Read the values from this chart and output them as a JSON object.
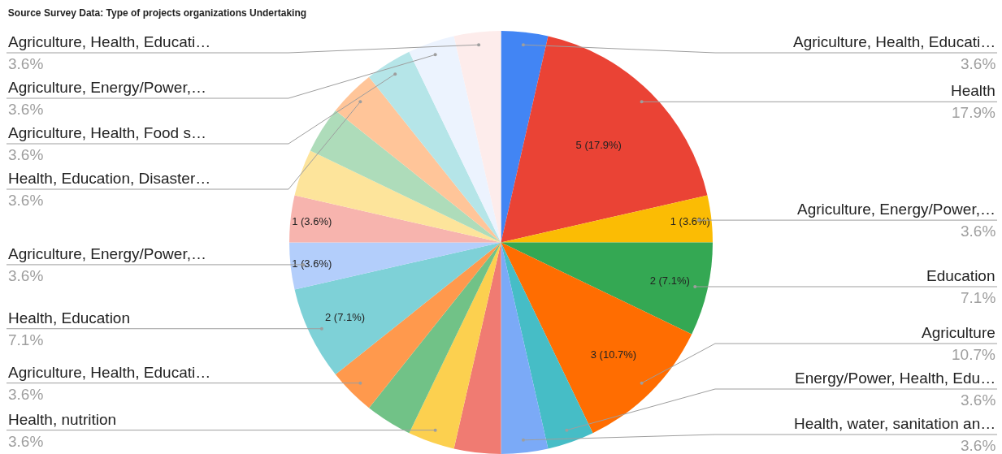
{
  "chart_data": {
    "type": "pie",
    "title": "Source Survey Data: Type of projects organizations Undertaking",
    "categories": [
      "Agriculture, Health, Educati…\n3.6%",
      "Health\n17.9%",
      "Agriculture, Energy/Power,…\n3.6%",
      "Education\n7.1%",
      "Agriculture\n10.7%",
      "Energy/Power, Health, Edu…\n3.6%",
      "Health, water, sanitation an…\n3.6%",
      null,
      "Health, nutrition\n3.6%",
      null,
      "Agriculture, Health, Educati…\n3.6%",
      "Health, Education\n7.1%",
      "Agriculture, Energy/Power,…\n3.6%",
      null,
      null,
      null,
      "Health, Education, Disaster…\n3.6%",
      "Agriculture, Health, Food s…\n3.6%",
      "Agriculture, Energy/Power,…\n3.6%",
      "Agriculture, Health, Educati…\n3.6%"
    ],
    "values": [
      1,
      5,
      1,
      2,
      3,
      1,
      1,
      1,
      1,
      1,
      1,
      2,
      1,
      1,
      1,
      1,
      1,
      1,
      1,
      1
    ],
    "colors": [
      "#4285f4",
      "#ea4335",
      "#fbbc04",
      "#34a853",
      "#ff6d01",
      "#46bdc6",
      "#7baaf7",
      "#f07b72",
      "#fcd04f",
      "#71c287",
      "#ff994d",
      "#7ed1d7",
      "#b3cefb",
      "#f7b4ae",
      "#fde49b",
      "#aedcba",
      "#ffc599",
      "#b5e5e8",
      "#ecf3fe",
      "#fdeceb"
    ],
    "value_labels": [
      null,
      "5 (17.9%)",
      "1 (3.6%)",
      "2 (7.1%)",
      "3 (10.7%)",
      null,
      null,
      null,
      null,
      null,
      null,
      "2 (7.1%)",
      "1 (3.6%)",
      "1 (3.6%)",
      null,
      null,
      null,
      null,
      null,
      null
    ]
  }
}
